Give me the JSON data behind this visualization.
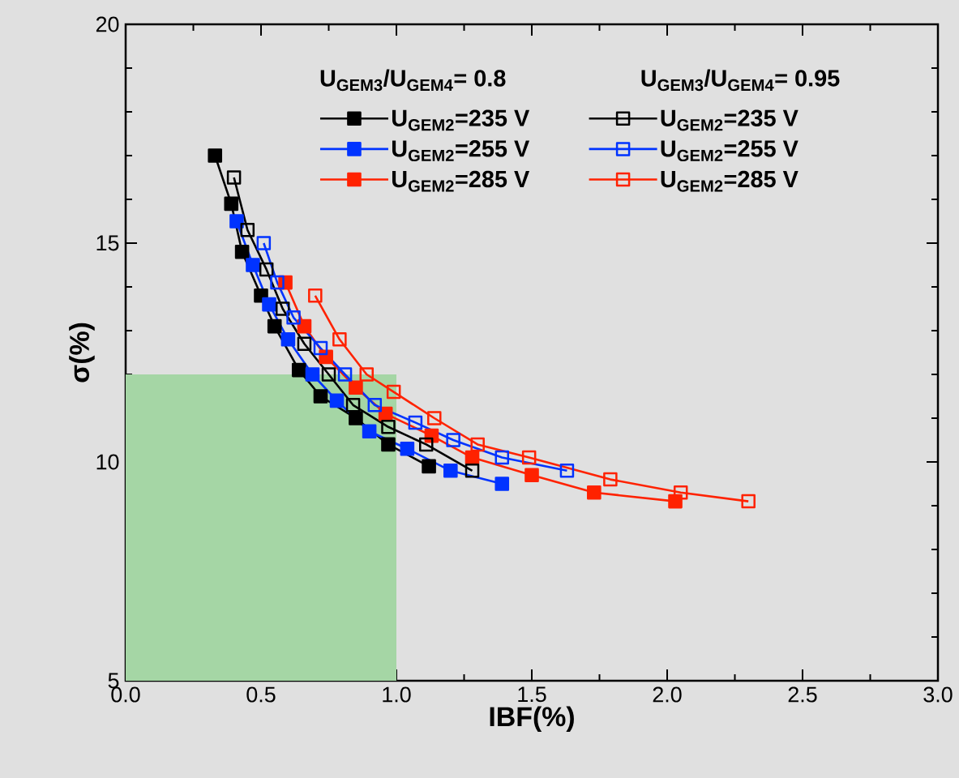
{
  "chart_data": {
    "type": "line",
    "xlabel": "IBF(%)",
    "ylabel": "σ(%)",
    "xlim": [
      0,
      3.0
    ],
    "ylim": [
      5,
      20
    ],
    "xticks": [
      {
        "value": 0,
        "label": "0.0"
      },
      {
        "value": 0.5,
        "label": "0.5"
      },
      {
        "value": 1.0,
        "label": "1.0"
      },
      {
        "value": 1.5,
        "label": "1.5"
      },
      {
        "value": 2.0,
        "label": "2.0"
      },
      {
        "value": 2.5,
        "label": "2.5"
      },
      {
        "value": 3.0,
        "label": "3.0"
      }
    ],
    "yticks": [
      5,
      10,
      15,
      20
    ],
    "annotations": [
      "U$_{GEM3}$/U$_{GEM4}$= 0.8",
      "U$_{GEM3}$/U$_{GEM4}$= 0.95"
    ],
    "legend": "top right",
    "marker": "square",
    "line_style": "solid",
    "grid": false,
    "series": [
      {
        "type": "area",
        "marker": "none",
        "color": "#a5d6a5",
        "x": [
          0,
          1.0
        ],
        "values": [
          12,
          12
        ]
      },
      {
        "name": "U$_{GEM2}$=235 V",
        "color": "#000000",
        "x": [
          0.33,
          0.39,
          0.43,
          0.5,
          0.55,
          0.64,
          0.72,
          0.85,
          0.97,
          1.12
        ],
        "values": [
          17.0,
          15.9,
          14.8,
          13.8,
          13.1,
          12.1,
          11.5,
          11.0,
          10.4,
          9.9
        ]
      },
      {
        "name": "U$_{GEM2}$=235 V",
        "color": "#000000",
        "x": [
          0.4,
          0.45,
          0.52,
          0.58,
          0.66,
          0.75,
          0.84,
          0.97,
          1.11,
          1.28
        ],
        "values": [
          16.5,
          15.3,
          14.4,
          13.5,
          12.7,
          12.0,
          11.3,
          10.8,
          10.4,
          9.8
        ]
      },
      {
        "name": "U$_{GEM2}$=255 V",
        "color": "#0033ff",
        "x": [
          0.41,
          0.47,
          0.53,
          0.6,
          0.69,
          0.78,
          0.9,
          1.04,
          1.2,
          1.39
        ],
        "values": [
          15.5,
          14.5,
          13.6,
          12.8,
          12.0,
          11.4,
          10.7,
          10.3,
          9.8,
          9.5
        ]
      },
      {
        "name": "U$_{GEM2}$=255 V",
        "color": "#0033ff",
        "x": [
          0.51,
          0.56,
          0.62,
          0.72,
          0.81,
          0.92,
          1.07,
          1.21,
          1.39,
          1.63
        ],
        "values": [
          15.0,
          14.1,
          13.3,
          12.6,
          12.0,
          11.3,
          10.9,
          10.5,
          10.1,
          9.8
        ]
      },
      {
        "name": "U$_{GEM2}$=285 V",
        "color": "#ff2200",
        "x": [
          0.59,
          0.66,
          0.74,
          0.85,
          0.96,
          1.13,
          1.28,
          1.5,
          1.73,
          2.03
        ],
        "values": [
          14.1,
          13.1,
          12.4,
          11.7,
          11.1,
          10.6,
          10.1,
          9.7,
          9.3,
          9.1
        ]
      },
      {
        "name": "U$_{GEM2}$=285 V",
        "color": "#ff2200",
        "x": [
          0.7,
          0.79,
          0.89,
          0.99,
          1.14,
          1.3,
          1.49,
          1.79,
          2.05,
          2.3
        ],
        "values": [
          13.8,
          12.8,
          12.0,
          11.6,
          11.0,
          10.4,
          10.1,
          9.6,
          9.3,
          9.1
        ]
      }
    ]
  }
}
